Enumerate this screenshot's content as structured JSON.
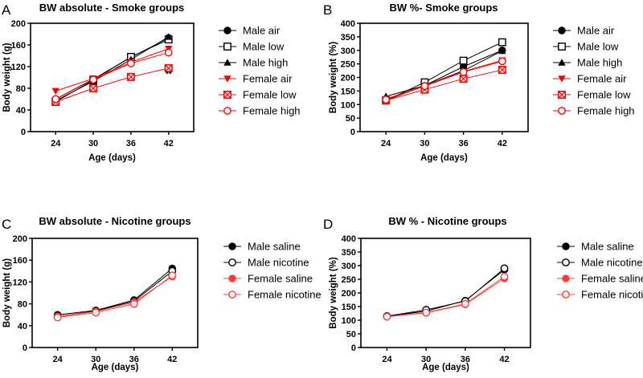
{
  "colors": {
    "male": "#000000",
    "female_smoke": "#ff0000",
    "female_nic": "#ff3b3b"
  },
  "chart_data": [
    {
      "panel": "A",
      "type": "line",
      "title": "BW absolute - Smoke groups",
      "xlabel": "Age (days)",
      "ylabel": "Body weight (g)",
      "x": [
        24,
        30,
        36,
        42
      ],
      "xlim": [
        20,
        46
      ],
      "ylim": [
        0,
        200
      ],
      "yticks": [
        0,
        40,
        80,
        120,
        160,
        200
      ],
      "grid": false,
      "legend": "right",
      "annotation": {
        "text": "**",
        "x": 42,
        "y": 106
      },
      "series": [
        {
          "name": "Male air",
          "marker": "circle-filled",
          "color": "#000000",
          "values": [
            60,
            97,
            137,
            173
          ]
        },
        {
          "name": "Male low",
          "marker": "square-open",
          "color": "#000000",
          "values": [
            55,
            95,
            138,
            170
          ]
        },
        {
          "name": "Male high",
          "marker": "triangle-up",
          "color": "#000000",
          "values": [
            57,
            93,
            133,
            175
          ]
        },
        {
          "name": "Female air",
          "marker": "triangle-down",
          "color": "#ff0000",
          "values": [
            75,
            98,
            128,
            153
          ]
        },
        {
          "name": "Female low",
          "marker": "square-cross",
          "color": "#ff0000",
          "values": [
            55,
            80,
            101,
            117
          ]
        },
        {
          "name": "Female high",
          "marker": "circle-open",
          "color": "#ff0000",
          "values": [
            60,
            96,
            126,
            146
          ]
        }
      ]
    },
    {
      "panel": "B",
      "type": "line",
      "title": "BW %- Smoke groups",
      "xlabel": "Age (days)",
      "ylabel": "Body weight (%)",
      "x": [
        24,
        30,
        36,
        42
      ],
      "xlim": [
        20,
        46
      ],
      "ylim": [
        0,
        400
      ],
      "yticks": [
        0,
        50,
        100,
        150,
        200,
        250,
        300,
        350,
        400
      ],
      "grid": false,
      "legend": "right",
      "series": [
        {
          "name": "Male air",
          "marker": "circle-filled",
          "color": "#000000",
          "values": [
            115,
            170,
            240,
            300
          ]
        },
        {
          "name": "Male low",
          "marker": "square-open",
          "color": "#000000",
          "values": [
            115,
            182,
            262,
            330
          ]
        },
        {
          "name": "Male high",
          "marker": "triangle-up",
          "color": "#000000",
          "values": [
            130,
            170,
            225,
            298
          ]
        },
        {
          "name": "Female air",
          "marker": "triangle-down",
          "color": "#ff0000",
          "values": [
            120,
            170,
            222,
            263
          ]
        },
        {
          "name": "Female low",
          "marker": "square-cross",
          "color": "#ff0000",
          "values": [
            115,
            155,
            195,
            228
          ]
        },
        {
          "name": "Female high",
          "marker": "circle-open",
          "color": "#ff0000",
          "values": [
            118,
            168,
            220,
            260
          ]
        }
      ]
    },
    {
      "panel": "C",
      "type": "line",
      "title": "BW absolute - Nicotine groups",
      "xlabel": "Age (days)",
      "ylabel": "Body weight (g)",
      "x": [
        24,
        30,
        36,
        42
      ],
      "xlim": [
        20,
        46
      ],
      "ylim": [
        0,
        200
      ],
      "yticks": [
        0,
        40,
        80,
        120,
        160,
        200
      ],
      "grid": false,
      "legend": "right",
      "series": [
        {
          "name": "Male saline",
          "marker": "circle-filled",
          "color": "#000000",
          "values": [
            60,
            68,
            87,
            145
          ]
        },
        {
          "name": "Male nicotine",
          "marker": "circle-open",
          "color": "#000000",
          "values": [
            57,
            67,
            85,
            140
          ]
        },
        {
          "name": "Female saline",
          "marker": "circle-filled",
          "color": "#ff3b3b",
          "values": [
            57,
            66,
            83,
            130
          ]
        },
        {
          "name": "Female nicotine",
          "marker": "circle-open",
          "color": "#ff3b3b",
          "values": [
            55,
            64,
            80,
            132
          ]
        }
      ]
    },
    {
      "panel": "D",
      "type": "line",
      "title": "BW % - Nicotine groups",
      "xlabel": "Age (days)",
      "ylabel": "Body weight (%)",
      "x": [
        24,
        30,
        36,
        42
      ],
      "xlim": [
        20,
        46
      ],
      "ylim": [
        0,
        400
      ],
      "yticks": [
        0,
        50,
        100,
        150,
        200,
        250,
        300,
        350,
        400
      ],
      "grid": false,
      "legend": "right",
      "series": [
        {
          "name": "Male saline",
          "marker": "circle-filled",
          "color": "#000000",
          "values": [
            115,
            133,
            172,
            285
          ]
        },
        {
          "name": "Male nicotine",
          "marker": "circle-open",
          "color": "#000000",
          "values": [
            115,
            138,
            170,
            290
          ]
        },
        {
          "name": "Female saline",
          "marker": "circle-filled",
          "color": "#ff3b3b",
          "values": [
            113,
            127,
            158,
            253
          ]
        },
        {
          "name": "Female nicotine",
          "marker": "circle-open",
          "color": "#ff3b3b",
          "values": [
            113,
            128,
            160,
            260
          ]
        }
      ]
    }
  ]
}
